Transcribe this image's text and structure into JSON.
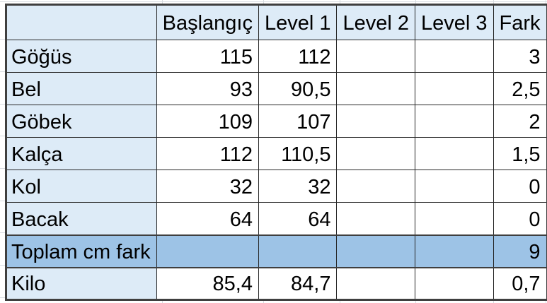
{
  "sheet": {
    "columns": [
      "",
      "Başlangıç",
      "Level 1",
      "Level 2",
      "Level 3",
      "Fark"
    ],
    "rows": [
      {
        "label": "Göğüs",
        "type": "data",
        "values": [
          "115",
          "112",
          "",
          "",
          "3"
        ]
      },
      {
        "label": "Bel",
        "type": "data",
        "values": [
          "93",
          "90,5",
          "",
          "",
          "2,5"
        ]
      },
      {
        "label": "Göbek",
        "type": "data",
        "values": [
          "109",
          "107",
          "",
          "",
          "2"
        ]
      },
      {
        "label": "Kalça",
        "type": "data",
        "values": [
          "112",
          "110,5",
          "",
          "",
          "1,5"
        ]
      },
      {
        "label": "Kol",
        "type": "data",
        "values": [
          "32",
          "32",
          "",
          "",
          "0"
        ]
      },
      {
        "label": "Bacak",
        "type": "data",
        "values": [
          "64",
          "64",
          "",
          "",
          "0"
        ]
      },
      {
        "label": "Toplam cm fark",
        "type": "total",
        "values": [
          "",
          "",
          "",
          "",
          "9"
        ]
      },
      {
        "label": "Kilo",
        "type": "data",
        "values": [
          "85,4",
          "84,7",
          "",
          "",
          "0,7"
        ]
      }
    ],
    "colors": {
      "header_fill": "#DDEBF7",
      "label_fill": "#DDEBF7",
      "total_fill": "#9DC3E6",
      "cell_fill": "#FFFFFF",
      "border_thin": "#262626",
      "border_thick": "#3F3F3F",
      "gridline": "#D7DBE0",
      "text": "#000000"
    }
  }
}
